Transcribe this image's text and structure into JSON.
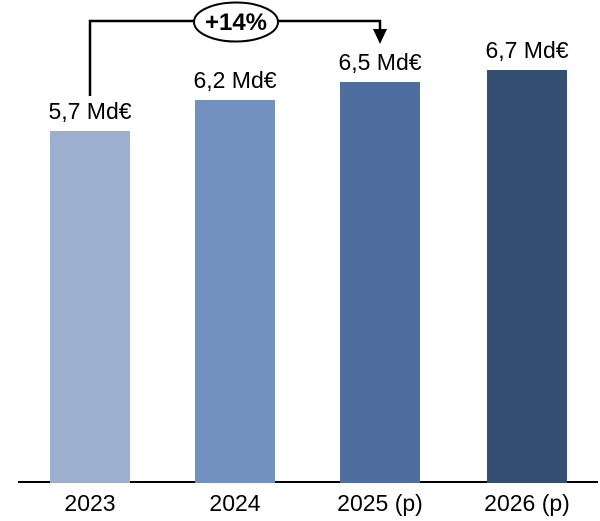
{
  "chart_data": {
    "type": "bar",
    "title": "",
    "xlabel": "",
    "ylabel": "",
    "categories": [
      "2023",
      "2024",
      "2025 (p)",
      "2026 (p)"
    ],
    "values": [
      5.7,
      6.2,
      6.5,
      6.7
    ],
    "value_labels": [
      "5,7 Md€",
      "6,2 Md€",
      "6,5 Md€",
      "6,7 Md€"
    ],
    "bar_colors": [
      "#9dafce",
      "#7291be",
      "#4d6e9e",
      "#354f73"
    ],
    "ylim": [
      0,
      6.7
    ],
    "grid": false,
    "legend": false,
    "axis_color": "#000000",
    "annotation": {
      "label": "+14%",
      "from_category": "2023",
      "to_category": "2025 (p)",
      "shape": "ellipse"
    }
  }
}
